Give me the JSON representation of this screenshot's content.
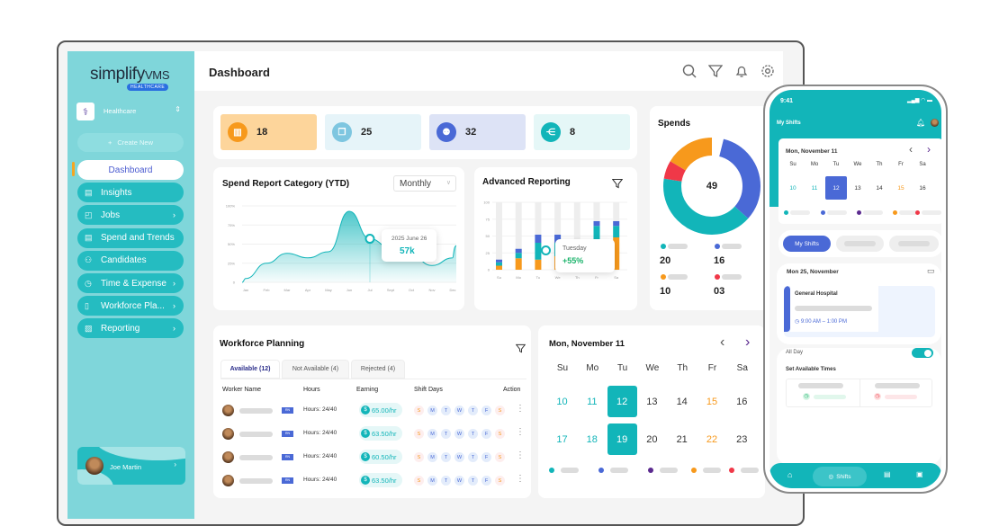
{
  "brand": {
    "logo_text": "simplify",
    "logo_suffix": "VMS",
    "logo_badge": "HEALTHCARE"
  },
  "org": {
    "name": "Healthcare",
    "icon": "caduceus-icon"
  },
  "sidebar": {
    "create_label": "Create New",
    "items": [
      {
        "label": "Dashboard",
        "icon": "",
        "active": true,
        "chevron": false
      },
      {
        "label": "Insights",
        "icon": "clipboard-icon",
        "chevron": false
      },
      {
        "label": "Jobs",
        "icon": "briefcase-icon",
        "chevron": true
      },
      {
        "label": "Spend and Trends",
        "icon": "document-icon",
        "chevron": false
      },
      {
        "label": "Candidates",
        "icon": "users-icon",
        "chevron": false
      },
      {
        "label": "Time & Expense",
        "icon": "clock-icon",
        "chevron": true
      },
      {
        "label": "Workforce Pla...",
        "icon": "book-icon",
        "chevron": true
      },
      {
        "label": "Reporting",
        "icon": "report-icon",
        "chevron": true
      }
    ],
    "user": {
      "name": "Joe Martin"
    }
  },
  "header": {
    "title": "Dashboard",
    "icons": [
      "search-icon",
      "filter-icon",
      "bell-icon",
      "gear-icon"
    ]
  },
  "stats": [
    {
      "value": "18",
      "icon": "briefcase-icon",
      "bg": "#fdd59b",
      "accent": "#f7991c"
    },
    {
      "value": "25",
      "icon": "documents-icon",
      "bg": "#e6f4f9",
      "accent": "#7ec6e0"
    },
    {
      "value": "32",
      "icon": "team-icon",
      "bg": "#dde3f6",
      "accent": "#4a69d6"
    },
    {
      "value": "8",
      "icon": "share-icon",
      "bg": "#e5f7f7",
      "accent": "#12b5b9"
    }
  ],
  "spend_report": {
    "title": "Spend  Report Category (YTD)",
    "period": "Monthly",
    "tooltip": {
      "date": "2025 June 26",
      "value": "57k"
    }
  },
  "advanced": {
    "title": "Advanced Reporting",
    "tooltip": {
      "day": "Tuesday",
      "value": "+55%"
    }
  },
  "spends": {
    "title": "Spends",
    "total": "49",
    "legend": [
      {
        "value": "20",
        "color": "#12b5b9"
      },
      {
        "value": "16",
        "color": "#4a69d6"
      },
      {
        "value": "10",
        "color": "#f7991c"
      },
      {
        "value": "03",
        "color": "#f03848"
      }
    ]
  },
  "chart_data": [
    {
      "type": "area",
      "title": "Spend  Report Category (YTD)",
      "categories": [
        "Jan",
        "Feb",
        "Mar",
        "Apr",
        "May",
        "Jun",
        "Jul",
        "Sept",
        "Oct",
        "Nov",
        "Dec"
      ],
      "values": [
        5,
        25,
        38,
        32,
        40,
        93,
        57,
        45,
        35,
        22,
        32
      ],
      "y_ticks": [
        "0",
        "25%",
        "50%",
        "75%",
        "100%"
      ],
      "ylim": [
        0,
        100
      ],
      "grid": true,
      "color": "#12b5b9"
    },
    {
      "type": "bar",
      "stacked": true,
      "title": "Advanced Reporting",
      "categories": [
        "Su",
        "Mo",
        "Tu",
        "We",
        "Th",
        "Fr",
        "Sa"
      ],
      "y_ticks": [
        "0",
        "25",
        "50",
        "75",
        "100"
      ],
      "ylim": [
        0,
        100
      ],
      "series": [
        {
          "color": "#f7991c",
          "values": [
            6,
            17,
            15,
            20,
            20,
            30,
            48
          ]
        },
        {
          "color": "#12b5b9",
          "values": [
            5,
            8,
            25,
            20,
            15,
            35,
            17
          ]
        },
        {
          "color": "#4a69d6",
          "values": [
            4,
            6,
            12,
            12,
            10,
            7,
            7
          ]
        }
      ]
    },
    {
      "type": "pie",
      "donut": true,
      "title": "Spends",
      "values": [
        16,
        20,
        3,
        10
      ],
      "colors": [
        "#4a69d6",
        "#12b5b9",
        "#f03848",
        "#f7991c"
      ]
    }
  ],
  "workforce": {
    "title": "Workforce Planning",
    "tabs": [
      "Available (12)",
      "Not Available (4)",
      "Rejected (4)"
    ],
    "columns": [
      "Worker Name",
      "Hours",
      "Earning",
      "Shift Days",
      "Action"
    ],
    "days": [
      "S",
      "M",
      "T",
      "W",
      "T",
      "F",
      "S"
    ],
    "rows": [
      {
        "badge": "RN",
        "hours": "Hours: 24/40",
        "earning": "65.00/hr"
      },
      {
        "badge": "RN",
        "hours": "Hours: 24/40",
        "earning": "63.50/hr"
      },
      {
        "badge": "RN",
        "hours": "Hours: 24/40",
        "earning": "60.50/hr"
      },
      {
        "badge": "RN",
        "hours": "Hours: 24/40",
        "earning": "63.50/hr"
      }
    ]
  },
  "calendar": {
    "title": "Mon, November 11",
    "weekdays": [
      "Su",
      "Mo",
      "Tu",
      "We",
      "Th",
      "Fr",
      "Sa"
    ],
    "weeks": [
      [
        "10",
        "11",
        "12",
        "13",
        "14",
        "15",
        "16"
      ],
      [
        "17",
        "18",
        "19",
        "20",
        "21",
        "22",
        "23"
      ]
    ],
    "selected": [
      "12",
      "19"
    ],
    "legend_colors": [
      "#12b5b9",
      "#4a69d6",
      "#5b2a8f",
      "#f7991c",
      "#f03848"
    ]
  },
  "phone": {
    "time": "9:41",
    "title": "My Shifts",
    "calendar": {
      "title": "Mon, November 11",
      "weekdays": [
        "Su",
        "Mo",
        "Tu",
        "We",
        "Th",
        "Fr",
        "Sa"
      ],
      "days": [
        "10",
        "11",
        "12",
        "13",
        "14",
        "15",
        "16"
      ],
      "selected": "12"
    },
    "segment": "My Shifts",
    "date": "Mon 25, November",
    "shift": {
      "place": "General Hospital",
      "time": "9:00 AM – 1:00 PM"
    },
    "all_day": "All Day",
    "all_day_on": true,
    "set_times": "Set Available Times",
    "nav": [
      {
        "icon": "home-icon"
      },
      {
        "icon": "shifts-icon",
        "label": "Shifts"
      },
      {
        "icon": "clipboard-icon"
      },
      {
        "icon": "notes-icon"
      }
    ]
  }
}
